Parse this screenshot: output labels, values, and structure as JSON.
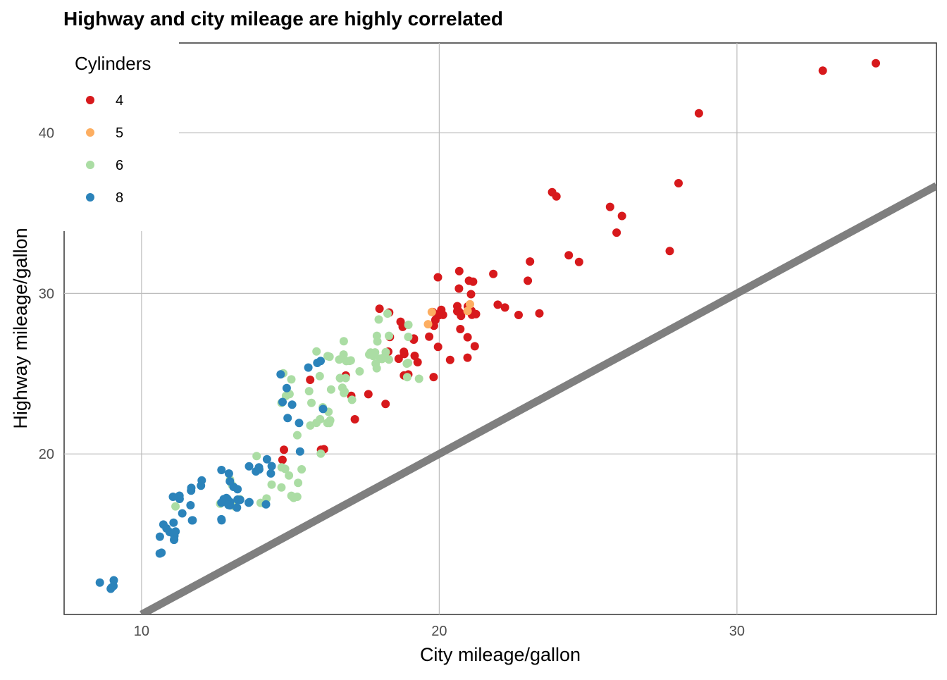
{
  "chart_data": {
    "type": "scatter",
    "title": "Highway and city mileage are highly correlated",
    "xlabel": "City mileage/gallon",
    "ylabel": "Highway mileage/gallon",
    "xlim": [
      7.4,
      36.7
    ],
    "ylim": [
      10.0,
      45.6
    ],
    "x_ticks": [
      10,
      20,
      30
    ],
    "y_ticks": [
      20,
      30,
      40
    ],
    "grid": true,
    "legend": {
      "title": "Cylinders",
      "placement": "top-left",
      "entries": [
        {
          "label": "4",
          "color": "#d7191c"
        },
        {
          "label": "5",
          "color": "#fdae61"
        },
        {
          "label": "6",
          "color": "#abdda4"
        },
        {
          "label": "8",
          "color": "#2b83ba"
        }
      ]
    },
    "reference_line": {
      "label": "y = x",
      "color": "#7f7f7f",
      "slope": 1,
      "intercept": 0
    },
    "series": [
      {
        "name": "4",
        "color": "#d7191c",
        "points": [
          [
            18.0,
            29.0
          ],
          [
            21.0,
            29.0
          ],
          [
            20.0,
            31.0
          ],
          [
            21.0,
            30.0
          ],
          [
            18.0,
            26.0
          ],
          [
            19.0,
            26.0
          ],
          [
            20.0,
            29.0
          ],
          [
            21.0,
            31.0
          ],
          [
            21.0,
            31.0
          ],
          [
            23.0,
            32.0
          ],
          [
            28.0,
            33.0
          ],
          [
            24.0,
            32.0
          ],
          [
            25.0,
            32.0
          ],
          [
            23.0,
            29.0
          ],
          [
            24.0,
            36.0
          ],
          [
            26.0,
            35.0
          ],
          [
            26.0,
            35.0
          ],
          [
            26.0,
            34.0
          ],
          [
            28.0,
            37.0
          ],
          [
            29.0,
            41.0
          ],
          [
            33.0,
            44.0
          ],
          [
            35.0,
            44.0
          ],
          [
            24.0,
            36.0
          ],
          [
            23.0,
            31.0
          ],
          [
            21.0,
            29.0
          ],
          [
            22.0,
            29.0
          ],
          [
            21.0,
            28.0
          ],
          [
            20.0,
            27.0
          ],
          [
            19.0,
            26.0
          ],
          [
            19.0,
            27.0
          ],
          [
            20.0,
            26.0
          ],
          [
            21.0,
            26.0
          ],
          [
            21.0,
            27.0
          ],
          [
            19.0,
            25.0
          ],
          [
            20.0,
            25.0
          ],
          [
            21.0,
            27.0
          ],
          [
            22.0,
            31.0
          ],
          [
            18.0,
            26.0
          ],
          [
            18.0,
            27.0
          ],
          [
            18.0,
            23.0
          ],
          [
            17.0,
            24.0
          ],
          [
            17.0,
            25.0
          ],
          [
            19.0,
            28.0
          ],
          [
            19.0,
            27.0
          ],
          [
            19.0,
            26.0
          ],
          [
            21.0,
            29.0
          ],
          [
            21.0,
            30.0
          ],
          [
            21.0,
            31.0
          ],
          [
            22.0,
            29.0
          ],
          [
            20.0,
            29.0
          ],
          [
            19.0,
            28.0
          ],
          [
            18.0,
            29.0
          ],
          [
            18.0,
            24.0
          ],
          [
            17.0,
            22.0
          ],
          [
            16.0,
            20.0
          ],
          [
            15.0,
            20.0
          ],
          [
            15.0,
            20.0
          ],
          [
            16.0,
            25.0
          ],
          [
            16.0,
            20.0
          ],
          [
            19.0,
            26.0
          ],
          [
            20.0,
            29.0
          ],
          [
            20.0,
            28.0
          ],
          [
            21.0,
            29.0
          ],
          [
            20.0,
            29.0
          ],
          [
            21.0,
            29.0
          ],
          [
            21.0,
            29.0
          ],
          [
            21.0,
            29.0
          ],
          [
            20.0,
            29.0
          ],
          [
            21.0,
            29.0
          ],
          [
            21.0,
            29.0
          ],
          [
            21.0,
            29.0
          ],
          [
            20.0,
            28.0
          ],
          [
            19.0,
            26.0
          ],
          [
            19.0,
            25.0
          ],
          [
            20.0,
            27.0
          ],
          [
            23.0,
            29.0
          ]
        ]
      },
      {
        "name": "5",
        "color": "#fdae61",
        "points": [
          [
            20.0,
            29.0
          ],
          [
            20.0,
            28.0
          ],
          [
            21.0,
            29.0
          ],
          [
            21.0,
            29.0
          ]
        ]
      },
      {
        "name": "6",
        "color": "#abdda4",
        "points": [
          [
            18.0,
            26.0
          ],
          [
            18.0,
            26.0
          ],
          [
            18.0,
            26.0
          ],
          [
            17.0,
            25.0
          ],
          [
            18.0,
            28.0
          ],
          [
            16.0,
            22.0
          ],
          [
            16.0,
            22.0
          ],
          [
            15.0,
            17.0
          ],
          [
            15.0,
            17.0
          ],
          [
            15.0,
            17.0
          ],
          [
            15.0,
            19.0
          ],
          [
            15.0,
            19.0
          ],
          [
            14.0,
            17.0
          ],
          [
            14.0,
            17.0
          ],
          [
            14.0,
            17.0
          ],
          [
            13.0,
            17.0
          ],
          [
            13.0,
            17.0
          ],
          [
            13.0,
            18.0
          ],
          [
            13.0,
            17.0
          ],
          [
            11.0,
            17.0
          ],
          [
            15.0,
            25.0
          ],
          [
            15.0,
            24.0
          ],
          [
            16.0,
            24.0
          ],
          [
            16.0,
            24.0
          ],
          [
            17.0,
            24.0
          ],
          [
            17.0,
            26.0
          ],
          [
            18.0,
            26.0
          ],
          [
            18.0,
            26.0
          ],
          [
            18.0,
            29.0
          ],
          [
            16.0,
            22.0
          ],
          [
            16.0,
            26.0
          ],
          [
            17.0,
            25.0
          ],
          [
            17.0,
            26.0
          ],
          [
            18.0,
            27.0
          ],
          [
            18.0,
            26.0
          ],
          [
            18.0,
            26.0
          ],
          [
            19.0,
            28.0
          ],
          [
            19.0,
            25.0
          ],
          [
            19.0,
            25.0
          ],
          [
            19.0,
            26.0
          ],
          [
            15.0,
            23.0
          ],
          [
            16.0,
            23.0
          ],
          [
            17.0,
            26.0
          ],
          [
            17.0,
            26.0
          ],
          [
            18.0,
            26.0
          ],
          [
            18.0,
            26.0
          ],
          [
            18.0,
            27.0
          ],
          [
            18.0,
            27.0
          ],
          [
            16.0,
            22.0
          ],
          [
            16.0,
            22.0
          ],
          [
            16.0,
            23.0
          ],
          [
            17.0,
            23.0
          ],
          [
            17.0,
            24.0
          ],
          [
            17.0,
            25.0
          ],
          [
            16.0,
            22.0
          ],
          [
            15.0,
            21.0
          ],
          [
            15.0,
            19.0
          ],
          [
            15.0,
            19.0
          ],
          [
            14.0,
            18.0
          ],
          [
            14.0,
            20.0
          ],
          [
            13.0,
            18.0
          ],
          [
            15.0,
            18.0
          ],
          [
            15.0,
            18.0
          ],
          [
            16.0,
            20.0
          ],
          [
            16.0,
            23.0
          ],
          [
            17.0,
            25.0
          ],
          [
            18.0,
            25.0
          ],
          [
            18.0,
            26.0
          ],
          [
            19.0,
            27.0
          ],
          [
            19.0,
            26.0
          ],
          [
            18.0,
            26.0
          ],
          [
            17.0,
            24.0
          ],
          [
            17.0,
            26.0
          ],
          [
            16.0,
            26.0
          ],
          [
            16.0,
            26.0
          ],
          [
            15.0,
            25.0
          ],
          [
            15.0,
            24.0
          ],
          [
            16.0,
            25.0
          ],
          [
            17.0,
            27.0
          ]
        ]
      },
      {
        "name": "8",
        "color": "#2b83ba",
        "points": [
          [
            9.0,
            12.0
          ],
          [
            9.0,
            12.0
          ],
          [
            9.0,
            12.0
          ],
          [
            9.0,
            12.0
          ],
          [
            9.0,
            12.0
          ],
          [
            11.0,
            15.0
          ],
          [
            11.0,
            14.0
          ],
          [
            11.0,
            15.0
          ],
          [
            11.0,
            16.0
          ],
          [
            11.0,
            16.0
          ],
          [
            11.0,
            17.0
          ],
          [
            11.0,
            17.0
          ],
          [
            11.0,
            17.0
          ],
          [
            11.0,
            15.0
          ],
          [
            11.0,
            15.0
          ],
          [
            11.0,
            15.0
          ],
          [
            11.0,
            15.0
          ],
          [
            11.0,
            16.0
          ],
          [
            11.0,
            15.0
          ],
          [
            11.0,
            14.0
          ],
          [
            12.0,
            16.0
          ],
          [
            12.0,
            17.0
          ],
          [
            12.0,
            18.0
          ],
          [
            12.0,
            18.0
          ],
          [
            12.0,
            18.0
          ],
          [
            12.0,
            18.0
          ],
          [
            12.0,
            16.0
          ],
          [
            13.0,
            16.0
          ],
          [
            13.0,
            16.0
          ],
          [
            13.0,
            17.0
          ],
          [
            13.0,
            17.0
          ],
          [
            13.0,
            17.0
          ],
          [
            13.0,
            17.0
          ],
          [
            13.0,
            17.0
          ],
          [
            13.0,
            18.0
          ],
          [
            13.0,
            18.0
          ],
          [
            13.0,
            18.0
          ],
          [
            13.0,
            19.0
          ],
          [
            13.0,
            19.0
          ],
          [
            13.0,
            17.0
          ],
          [
            13.0,
            17.0
          ],
          [
            13.0,
            17.0
          ],
          [
            13.0,
            17.0
          ],
          [
            13.0,
            17.0
          ],
          [
            14.0,
            17.0
          ],
          [
            14.0,
            17.0
          ],
          [
            14.0,
            17.0
          ],
          [
            14.0,
            19.0
          ],
          [
            14.0,
            19.0
          ],
          [
            14.0,
            19.0
          ],
          [
            14.0,
            20.0
          ],
          [
            14.0,
            19.0
          ],
          [
            14.0,
            19.0
          ],
          [
            14.0,
            19.0
          ],
          [
            15.0,
            20.0
          ],
          [
            15.0,
            22.0
          ],
          [
            15.0,
            22.0
          ],
          [
            15.0,
            23.0
          ],
          [
            15.0,
            23.0
          ],
          [
            15.0,
            24.0
          ],
          [
            15.0,
            25.0
          ],
          [
            16.0,
            26.0
          ],
          [
            16.0,
            26.0
          ],
          [
            16.0,
            25.0
          ],
          [
            16.0,
            23.0
          ]
        ]
      }
    ]
  }
}
